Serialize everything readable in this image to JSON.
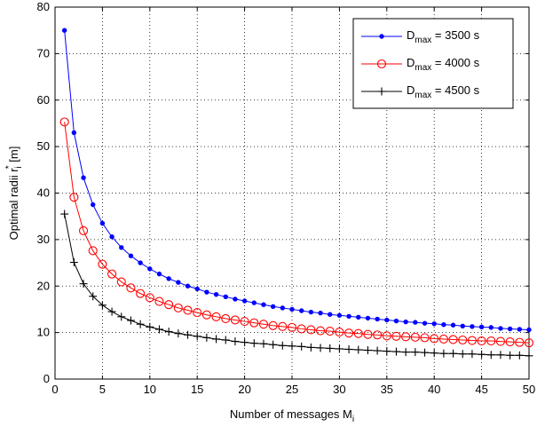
{
  "chart_data": {
    "type": "line",
    "xlabel": "Number of messages M",
    "xlabel_sub": "i",
    "ylabel": "Optimal radii r",
    "ylabel_sub": "i",
    "ylabel_sup": "*",
    "ylabel_unit": " [m]",
    "xlim": [
      0,
      50
    ],
    "ylim": [
      0,
      80
    ],
    "xticks": [
      0,
      5,
      10,
      15,
      20,
      25,
      30,
      35,
      40,
      45,
      50
    ],
    "yticks": [
      0,
      10,
      20,
      30,
      40,
      50,
      60,
      70,
      80
    ],
    "grid": true,
    "legend_position": "top-right",
    "x": [
      1,
      2,
      3,
      4,
      5,
      6,
      7,
      8,
      9,
      10,
      11,
      12,
      13,
      14,
      15,
      16,
      17,
      18,
      19,
      20,
      21,
      22,
      23,
      24,
      25,
      26,
      27,
      28,
      29,
      30,
      31,
      32,
      33,
      34,
      35,
      36,
      37,
      38,
      39,
      40,
      41,
      42,
      43,
      44,
      45,
      46,
      47,
      48,
      49,
      50
    ],
    "series": [
      {
        "legend_main": "D",
        "legend_sub": "max",
        "legend_rest": " = 3500 s",
        "color": "#0000ff",
        "marker": "dot",
        "values": [
          75.0,
          53.0,
          43.3,
          37.5,
          33.5,
          30.6,
          28.3,
          26.5,
          25.0,
          23.7,
          22.6,
          21.6,
          20.8,
          20.0,
          19.4,
          18.7,
          18.2,
          17.7,
          17.2,
          16.8,
          16.4,
          16.0,
          15.6,
          15.3,
          15.0,
          14.7,
          14.4,
          14.2,
          13.9,
          13.7,
          13.5,
          13.3,
          13.1,
          12.9,
          12.7,
          12.5,
          12.3,
          12.2,
          12.0,
          11.9,
          11.7,
          11.6,
          11.4,
          11.3,
          11.2,
          11.1,
          10.9,
          10.8,
          10.7,
          10.6
        ]
      },
      {
        "legend_main": "D",
        "legend_sub": "max",
        "legend_rest": " = 4000 s",
        "color": "#ff0000",
        "marker": "circle",
        "values": [
          55.3,
          39.1,
          31.9,
          27.6,
          24.7,
          22.6,
          20.9,
          19.6,
          18.4,
          17.5,
          16.7,
          16.0,
          15.3,
          14.8,
          14.3,
          13.8,
          13.4,
          13.0,
          12.7,
          12.4,
          12.1,
          11.8,
          11.5,
          11.3,
          11.1,
          10.8,
          10.6,
          10.4,
          10.3,
          10.1,
          9.9,
          9.8,
          9.6,
          9.5,
          9.3,
          9.2,
          9.1,
          9.0,
          8.9,
          8.7,
          8.6,
          8.5,
          8.4,
          8.3,
          8.2,
          8.2,
          8.1,
          8.0,
          7.9,
          7.8
        ]
      },
      {
        "legend_main": "D",
        "legend_sub": "max",
        "legend_rest": " = 4500 s",
        "color": "#000000",
        "marker": "plus",
        "values": [
          35.5,
          25.1,
          20.5,
          17.8,
          15.9,
          14.5,
          13.4,
          12.6,
          11.8,
          11.2,
          10.7,
          10.2,
          9.8,
          9.5,
          9.2,
          8.9,
          8.6,
          8.4,
          8.1,
          7.9,
          7.7,
          7.6,
          7.4,
          7.2,
          7.1,
          7.0,
          6.8,
          6.7,
          6.6,
          6.5,
          6.4,
          6.3,
          6.2,
          6.1,
          6.0,
          5.9,
          5.8,
          5.8,
          5.7,
          5.6,
          5.5,
          5.5,
          5.4,
          5.4,
          5.3,
          5.2,
          5.2,
          5.1,
          5.1,
          5.0
        ]
      }
    ]
  }
}
